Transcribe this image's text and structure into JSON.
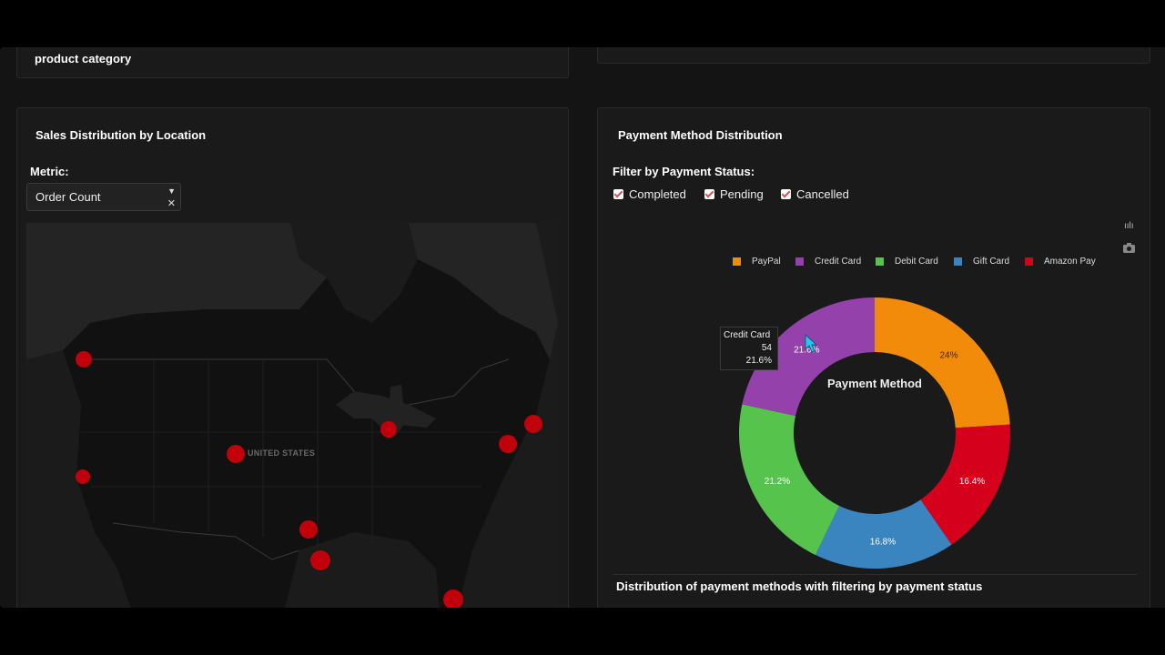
{
  "top_left": {
    "subtitle": "product category"
  },
  "map_card": {
    "title": "Sales Distribution by Location",
    "metric_label": "Metric:",
    "metric_value": "Order Count",
    "select_caret_icon": "caret-down-icon",
    "select_clear_icon": "close-icon",
    "map_label": "UNITED STATES",
    "marker_color": "#c0000a"
  },
  "pay_card": {
    "title": "Payment Method Distribution",
    "filter_label": "Filter by Payment Status:",
    "statuses": [
      {
        "label": "Completed",
        "checked": true
      },
      {
        "label": "Pending",
        "checked": true
      },
      {
        "label": "Cancelled",
        "checked": true
      }
    ],
    "modebar": {
      "chart_icon": "bar-chart-icon",
      "camera_icon": "camera-icon"
    },
    "caption": "Distribution of payment methods with filtering by payment status",
    "tooltip": {
      "label": "Credit Card",
      "count": "54",
      "percent": "21.6%"
    }
  },
  "chart_data": {
    "type": "pie",
    "hole": true,
    "center_label": "Payment Method",
    "legend_placement": "top",
    "slices": [
      {
        "name": "PayPal",
        "value": 24.0,
        "label": "24%",
        "color": "#f28a0a"
      },
      {
        "name": "Amazon Pay",
        "value": 16.4,
        "label": "16.4%",
        "color": "#d5001c"
      },
      {
        "name": "Gift Card",
        "value": 16.8,
        "label": "16.8%",
        "color": "#3a84c0"
      },
      {
        "name": "Debit Card",
        "value": 21.2,
        "label": "21.2%",
        "color": "#56c34d"
      },
      {
        "name": "Credit Card",
        "value": 21.6,
        "label": "21.6%",
        "color": "#9441ab"
      }
    ],
    "legend": [
      {
        "name": "PayPal",
        "color": "#f28a0a"
      },
      {
        "name": "Credit Card",
        "color": "#9441ab"
      },
      {
        "name": "Debit Card",
        "color": "#56c34d"
      },
      {
        "name": "Gift Card",
        "color": "#3a84c0"
      },
      {
        "name": "Amazon Pay",
        "color": "#d5001c"
      }
    ]
  }
}
